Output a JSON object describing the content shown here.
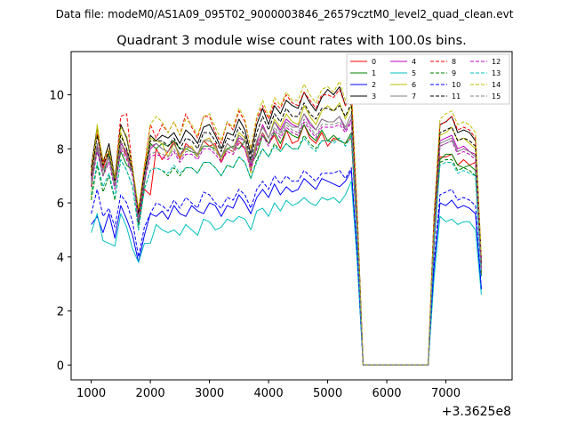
{
  "header": {
    "data_file": "Data file: modeM0/AS1A09_095T02_9000003846_26579cztM0_level2_quad_clean.evt"
  },
  "chart_data": {
    "type": "line",
    "title": "Quadrant 3 module wise count rates with 100.0s bins.",
    "xlabel": "",
    "ylabel": "",
    "x_offset_label": "+3.3625e8",
    "xlim": [
      660,
      8120
    ],
    "ylim": [
      -0.55,
      11.6
    ],
    "xticks": [
      1000,
      2000,
      3000,
      4000,
      5000,
      6000,
      7000
    ],
    "yticks": [
      0,
      2,
      4,
      6,
      8,
      10
    ],
    "grid": false,
    "legend_position": "upper-right",
    "x": [
      1000,
      1100,
      1200,
      1300,
      1400,
      1500,
      1600,
      1700,
      1800,
      1900,
      2000,
      2100,
      2200,
      2300,
      2400,
      2500,
      2600,
      2700,
      2800,
      2900,
      3000,
      3100,
      3200,
      3300,
      3400,
      3500,
      3600,
      3700,
      3800,
      3900,
      4000,
      4100,
      4200,
      4300,
      4400,
      4500,
      4600,
      4700,
      4800,
      4900,
      5000,
      5100,
      5200,
      5300,
      5400,
      5500,
      5600,
      5700,
      5800,
      5900,
      6000,
      6100,
      6200,
      6300,
      6400,
      6500,
      6600,
      6700,
      6800,
      6900,
      7000,
      7100,
      7200,
      7300,
      7400,
      7500,
      7600
    ],
    "series": [
      {
        "name": "0",
        "color": "#ff0000",
        "dash": false,
        "values": [
          7.1,
          8.6,
          7.3,
          7.9,
          6.8,
          8.3,
          7.7,
          7.2,
          5.2,
          6.5,
          6.3,
          8.0,
          7.6,
          7.9,
          8.3,
          7.6,
          8.2,
          8.0,
          7.8,
          8.3,
          8.1,
          8.2,
          7.5,
          8.0,
          7.9,
          8.3,
          8.0,
          7.3,
          8.1,
          8.6,
          8.2,
          8.5,
          8.0,
          8.7,
          8.2,
          8.3,
          8.9,
          8.4,
          8.2,
          8.6,
          8.1,
          8.4,
          8.3,
          8.2,
          8.4,
          4.7,
          0.0,
          0.0,
          0.0,
          0.0,
          0.0,
          0.0,
          0.0,
          0.0,
          0.0,
          0.0,
          0.0,
          0.0,
          4.4,
          7.7,
          7.7,
          7.8,
          7.4,
          7.6,
          7.4,
          7.5,
          3.3
        ]
      },
      {
        "name": "1",
        "color": "#008000",
        "dash": false,
        "values": [
          6.6,
          8.0,
          7.0,
          7.8,
          6.6,
          7.9,
          7.4,
          7.2,
          5.2,
          6.7,
          8.2,
          8.0,
          8.2,
          8.1,
          8.3,
          8.0,
          8.0,
          7.9,
          7.8,
          8.1,
          8.1,
          8.0,
          7.7,
          8.0,
          8.1,
          8.0,
          8.3,
          7.4,
          7.8,
          8.5,
          8.2,
          8.6,
          8.2,
          8.7,
          8.5,
          8.4,
          8.9,
          8.5,
          8.3,
          8.7,
          8.3,
          8.5,
          8.3,
          8.2,
          8.6,
          4.8,
          0.0,
          0.0,
          0.0,
          0.0,
          0.0,
          0.0,
          0.0,
          0.0,
          0.0,
          0.0,
          0.0,
          0.0,
          4.5,
          7.6,
          7.8,
          7.8,
          7.4,
          7.3,
          7.4,
          7.2,
          3.4
        ]
      },
      {
        "name": "2",
        "color": "#0000ff",
        "dash": false,
        "values": [
          5.2,
          5.5,
          4.9,
          5.6,
          4.7,
          5.9,
          5.4,
          4.8,
          3.8,
          4.8,
          5.6,
          5.5,
          5.7,
          5.4,
          5.9,
          5.6,
          5.5,
          5.9,
          5.7,
          5.6,
          6.0,
          5.9,
          5.5,
          5.9,
          5.8,
          6.3,
          6.0,
          5.6,
          6.2,
          6.5,
          6.2,
          6.7,
          6.3,
          6.6,
          6.4,
          6.5,
          6.9,
          6.7,
          6.5,
          6.9,
          6.8,
          6.7,
          6.6,
          6.8,
          7.2,
          4.0,
          0.0,
          0.0,
          0.0,
          0.0,
          0.0,
          0.0,
          0.0,
          0.0,
          0.0,
          0.0,
          0.0,
          0.0,
          3.6,
          6.0,
          5.9,
          6.1,
          5.8,
          5.9,
          5.8,
          5.6,
          2.8
        ]
      },
      {
        "name": "3",
        "color": "#000000",
        "dash": false,
        "values": [
          7.3,
          8.8,
          7.5,
          8.2,
          6.9,
          8.9,
          8.4,
          7.3,
          5.7,
          7.0,
          8.5,
          8.3,
          8.5,
          8.4,
          8.6,
          8.2,
          8.7,
          8.5,
          8.2,
          8.8,
          8.9,
          8.5,
          8.0,
          8.6,
          8.5,
          9.1,
          8.7,
          7.8,
          8.9,
          9.5,
          8.9,
          9.6,
          9.3,
          9.8,
          9.6,
          9.5,
          10.1,
          9.7,
          9.4,
          9.9,
          10.2,
          10.0,
          10.3,
          9.6,
          10.0,
          5.6,
          0.0,
          0.0,
          0.0,
          0.0,
          0.0,
          0.0,
          0.0,
          0.0,
          0.0,
          0.0,
          0.0,
          0.0,
          5.5,
          8.9,
          9.0,
          9.2,
          8.6,
          8.7,
          8.6,
          8.3,
          3.8
        ]
      },
      {
        "name": "4",
        "color": "#bf00bf",
        "dash": false,
        "values": [
          6.9,
          8.1,
          7.2,
          7.7,
          6.7,
          8.2,
          7.9,
          7.2,
          5.5,
          7.0,
          8.0,
          8.2,
          8.0,
          7.9,
          8.2,
          7.7,
          8.1,
          8.0,
          7.8,
          8.3,
          8.4,
          8.0,
          7.7,
          8.2,
          8.0,
          8.4,
          8.3,
          7.4,
          8.2,
          8.9,
          8.4,
          9.0,
          8.7,
          9.1,
          8.9,
          8.8,
          9.3,
          8.9,
          8.7,
          9.1,
          9.0,
          9.0,
          9.2,
          8.7,
          9.1,
          5.1,
          0.0,
          0.0,
          0.0,
          0.0,
          0.0,
          0.0,
          0.0,
          0.0,
          0.0,
          0.0,
          0.0,
          0.0,
          4.9,
          8.3,
          8.4,
          8.5,
          8.0,
          8.1,
          7.9,
          7.8,
          3.6
        ]
      },
      {
        "name": "5",
        "color": "#00bfbf",
        "dash": false,
        "values": [
          4.9,
          5.6,
          4.6,
          4.5,
          4.4,
          5.6,
          5.1,
          4.3,
          3.8,
          4.5,
          4.5,
          5.2,
          5.0,
          4.9,
          5.0,
          4.8,
          5.2,
          5.0,
          4.8,
          5.4,
          5.3,
          5.0,
          5.1,
          5.4,
          5.3,
          5.5,
          5.4,
          5.0,
          5.7,
          5.8,
          5.5,
          6.0,
          5.7,
          6.1,
          5.9,
          6.0,
          6.2,
          6.0,
          5.9,
          6.2,
          6.1,
          6.2,
          6.0,
          6.3,
          6.8,
          3.8,
          0.0,
          0.0,
          0.0,
          0.0,
          0.0,
          0.0,
          0.0,
          0.0,
          0.0,
          0.0,
          0.0,
          0.0,
          3.2,
          5.5,
          5.3,
          5.4,
          5.2,
          5.3,
          5.3,
          5.0,
          2.6
        ]
      },
      {
        "name": "6",
        "color": "#bfbf00",
        "dash": false,
        "values": [
          6.2,
          8.9,
          7.4,
          7.9,
          6.8,
          8.6,
          8.0,
          7.3,
          5.7,
          7.2,
          8.4,
          8.3,
          8.2,
          7.7,
          8.2,
          7.7,
          8.0,
          8.1,
          7.7,
          8.3,
          8.4,
          8.0,
          7.6,
          8.2,
          8.0,
          8.6,
          8.4,
          7.1,
          8.3,
          8.8,
          8.4,
          9.1,
          8.8,
          9.3,
          9.0,
          8.9,
          9.6,
          9.2,
          8.9,
          9.4,
          9.6,
          9.4,
          9.7,
          9.1,
          9.6,
          5.3,
          0.0,
          0.0,
          0.0,
          0.0,
          0.0,
          0.0,
          0.0,
          0.0,
          0.0,
          0.0,
          0.0,
          0.0,
          5.0,
          8.5,
          8.6,
          8.8,
          8.3,
          8.4,
          8.2,
          8.0,
          3.7
        ]
      },
      {
        "name": "7",
        "color": "#808080",
        "dash": false,
        "values": [
          6.8,
          8.2,
          7.2,
          7.7,
          6.7,
          8.3,
          7.8,
          7.2,
          5.4,
          7.0,
          8.1,
          8.2,
          8.0,
          7.9,
          8.2,
          7.8,
          8.1,
          8.0,
          7.8,
          8.3,
          8.3,
          8.1,
          7.7,
          8.2,
          8.0,
          8.5,
          8.3,
          7.5,
          8.3,
          8.8,
          8.4,
          9.0,
          8.6,
          9.0,
          8.8,
          8.8,
          9.3,
          9.0,
          8.7,
          9.1,
          9.0,
          9.0,
          9.2,
          8.8,
          9.3,
          5.1,
          0.0,
          0.0,
          0.0,
          0.0,
          0.0,
          0.0,
          0.0,
          0.0,
          0.0,
          0.0,
          0.0,
          0.0,
          4.9,
          8.2,
          8.3,
          8.4,
          7.9,
          8.0,
          7.9,
          7.7,
          3.5
        ]
      },
      {
        "name": "8",
        "color": "#ff0000",
        "dash": true,
        "values": [
          7.0,
          8.6,
          7.5,
          8.0,
          6.9,
          9.2,
          9.3,
          7.2,
          5.6,
          7.3,
          8.9,
          8.4,
          8.9,
          8.6,
          9.0,
          8.5,
          9.3,
          8.8,
          8.4,
          9.2,
          9.2,
          8.6,
          8.2,
          9.0,
          8.7,
          9.4,
          9.0,
          8.0,
          9.1,
          9.6,
          9.1,
          9.7,
          9.5,
          10.0,
          9.7,
          9.6,
          10.1,
          9.8,
          9.5,
          10.0,
          10.0,
          9.9,
          10.2,
          9.6,
          10.2,
          5.6,
          0.0,
          0.0,
          0.0,
          0.0,
          0.0,
          0.0,
          0.0,
          0.0,
          0.0,
          0.0,
          0.0,
          0.0,
          5.4,
          8.9,
          9.0,
          9.2,
          8.7,
          8.8,
          8.7,
          8.4,
          3.9
        ]
      },
      {
        "name": "9",
        "color": "#008000",
        "dash": true,
        "values": [
          6.1,
          7.4,
          6.4,
          7.0,
          6.1,
          7.6,
          7.2,
          6.6,
          5.0,
          6.5,
          7.2,
          7.3,
          7.2,
          7.0,
          7.3,
          7.0,
          7.3,
          7.3,
          7.1,
          7.5,
          7.5,
          7.3,
          7.0,
          7.4,
          7.3,
          7.7,
          7.5,
          6.9,
          7.6,
          8.0,
          7.7,
          8.2,
          7.9,
          8.2,
          8.0,
          8.0,
          8.5,
          8.2,
          8.0,
          8.3,
          8.3,
          8.3,
          8.4,
          8.1,
          8.5,
          4.7,
          0.0,
          0.0,
          0.0,
          0.0,
          0.0,
          0.0,
          0.0,
          0.0,
          0.0,
          0.0,
          0.0,
          0.0,
          4.5,
          7.5,
          7.6,
          7.6,
          7.2,
          7.3,
          7.2,
          7.0,
          3.3
        ]
      },
      {
        "name": "10",
        "color": "#0000ff",
        "dash": true,
        "values": [
          5.6,
          6.5,
          5.5,
          5.8,
          5.1,
          6.3,
          6.0,
          5.3,
          4.0,
          5.1,
          5.6,
          6.0,
          5.9,
          5.7,
          6.1,
          5.8,
          6.2,
          6.0,
          5.8,
          6.4,
          6.3,
          6.0,
          5.8,
          6.2,
          6.1,
          6.5,
          6.3,
          5.8,
          6.5,
          6.8,
          6.5,
          7.0,
          6.7,
          7.0,
          6.8,
          6.8,
          7.2,
          7.0,
          6.8,
          7.1,
          7.1,
          7.1,
          7.2,
          6.9,
          7.3,
          4.1,
          0.0,
          0.0,
          0.0,
          0.0,
          0.0,
          0.0,
          0.0,
          0.0,
          0.0,
          0.0,
          0.0,
          0.0,
          3.8,
          6.3,
          6.4,
          6.5,
          6.1,
          6.2,
          6.1,
          5.9,
          2.8
        ]
      },
      {
        "name": "11",
        "color": "#000000",
        "dash": true,
        "values": [
          7.0,
          8.5,
          7.4,
          7.9,
          6.8,
          8.5,
          8.0,
          7.2,
          5.6,
          7.1,
          8.3,
          8.3,
          8.3,
          8.1,
          8.4,
          8.0,
          8.4,
          8.3,
          8.0,
          8.6,
          8.6,
          8.3,
          7.9,
          8.4,
          8.3,
          8.8,
          8.5,
          7.6,
          8.6,
          9.2,
          8.7,
          9.3,
          9.0,
          9.5,
          9.2,
          9.2,
          9.7,
          9.3,
          9.1,
          9.5,
          9.5,
          9.4,
          9.6,
          9.2,
          9.7,
          5.4,
          0.0,
          0.0,
          0.0,
          0.0,
          0.0,
          0.0,
          0.0,
          0.0,
          0.0,
          0.0,
          0.0,
          0.0,
          5.1,
          8.6,
          8.7,
          8.8,
          8.3,
          8.4,
          8.3,
          8.1,
          3.7
        ]
      },
      {
        "name": "12",
        "color": "#bf00bf",
        "dash": true,
        "values": [
          6.6,
          7.9,
          7.0,
          7.5,
          6.5,
          8.0,
          7.6,
          7.0,
          5.3,
          6.8,
          7.7,
          7.8,
          7.7,
          7.6,
          7.9,
          7.5,
          7.8,
          7.8,
          7.6,
          8.0,
          8.0,
          7.8,
          7.5,
          7.9,
          7.8,
          8.2,
          8.0,
          7.2,
          8.0,
          8.5,
          8.1,
          8.7,
          8.4,
          8.8,
          8.6,
          8.5,
          9.0,
          8.7,
          8.4,
          8.8,
          8.8,
          8.8,
          8.9,
          8.6,
          9.0,
          5.0,
          0.0,
          0.0,
          0.0,
          0.0,
          0.0,
          0.0,
          0.0,
          0.0,
          0.0,
          0.0,
          0.0,
          0.0,
          4.8,
          8.1,
          8.2,
          8.3,
          7.8,
          7.9,
          7.8,
          7.6,
          3.5
        ]
      },
      {
        "name": "13",
        "color": "#00bfbf",
        "dash": true,
        "values": [
          6.3,
          7.5,
          6.6,
          7.1,
          6.2,
          7.6,
          7.2,
          6.6,
          5.0,
          6.5,
          7.2,
          7.3,
          7.2,
          7.1,
          7.4,
          7.1,
          7.3,
          7.3,
          7.1,
          7.5,
          7.5,
          7.3,
          7.0,
          7.4,
          7.3,
          7.7,
          7.5,
          6.9,
          7.5,
          8.0,
          7.7,
          8.1,
          7.9,
          8.2,
          8.0,
          8.0,
          8.4,
          8.1,
          7.9,
          8.3,
          8.3,
          8.2,
          8.4,
          8.1,
          8.5,
          4.7,
          0.0,
          0.0,
          0.0,
          0.0,
          0.0,
          0.0,
          0.0,
          0.0,
          0.0,
          0.0,
          0.0,
          0.0,
          4.5,
          7.4,
          7.5,
          7.5,
          7.1,
          7.2,
          7.1,
          7.0,
          3.2
        ]
      },
      {
        "name": "14",
        "color": "#bfbf00",
        "dash": true,
        "values": [
          7.2,
          8.7,
          7.6,
          8.0,
          6.9,
          8.8,
          8.5,
          7.3,
          5.8,
          7.4,
          8.9,
          9.2,
          9.0,
          8.6,
          9.0,
          8.5,
          9.1,
          8.9,
          8.5,
          9.2,
          9.3,
          8.8,
          8.3,
          9.0,
          8.8,
          9.5,
          9.1,
          8.0,
          9.2,
          9.8,
          9.2,
          9.9,
          9.6,
          10.1,
          9.8,
          9.8,
          10.4,
          10.0,
          9.7,
          10.2,
          10.3,
          10.1,
          10.5,
          9.8,
          10.3,
          5.7,
          0.0,
          0.0,
          0.0,
          0.0,
          0.0,
          0.0,
          0.0,
          0.0,
          0.0,
          0.0,
          0.0,
          0.0,
          5.5,
          9.1,
          9.3,
          9.4,
          8.9,
          9.0,
          8.9,
          8.6,
          4.0
        ]
      },
      {
        "name": "15",
        "color": "#808080",
        "dash": true,
        "values": [
          6.7,
          8.0,
          7.0,
          7.6,
          6.6,
          8.1,
          7.7,
          7.1,
          5.4,
          6.9,
          7.8,
          7.9,
          7.8,
          7.7,
          8.0,
          7.6,
          7.9,
          7.9,
          7.7,
          8.1,
          8.1,
          7.9,
          7.6,
          8.0,
          7.9,
          8.3,
          8.1,
          7.3,
          8.1,
          8.6,
          8.2,
          8.8,
          8.5,
          8.9,
          8.7,
          8.6,
          9.1,
          8.8,
          8.5,
          8.9,
          8.9,
          8.9,
          9.0,
          8.7,
          9.1,
          5.0,
          0.0,
          0.0,
          0.0,
          0.0,
          0.0,
          0.0,
          0.0,
          0.0,
          0.0,
          0.0,
          0.0,
          0.0,
          4.8,
          8.1,
          8.2,
          8.3,
          7.9,
          8.0,
          7.9,
          7.7,
          3.5
        ]
      }
    ]
  }
}
